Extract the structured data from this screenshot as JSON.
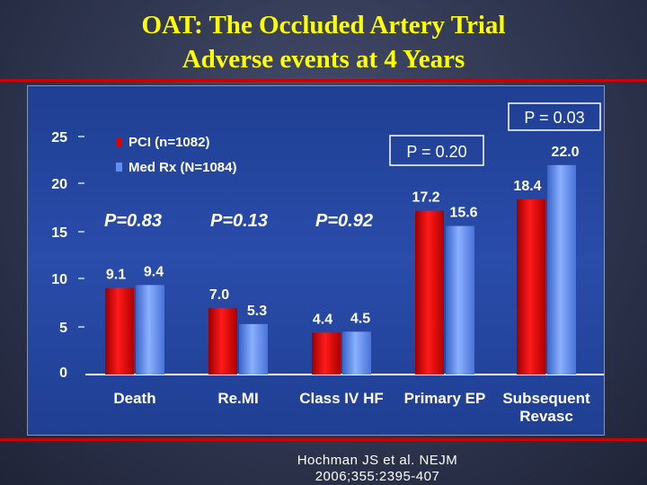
{
  "slide": {
    "title_line1": "OAT: The Occluded Artery Trial",
    "title_line2": "Adverse events at 4 Years",
    "citation_line1": "Hochman JS et al. NEJM",
    "citation_line2": "2006;355:2395-407",
    "colors": {
      "title": "#ffff00",
      "background": "#2b3150",
      "panel": "#2646a0",
      "accent_rule": "#cc0000"
    }
  },
  "chart_data": {
    "type": "bar",
    "categories": [
      "Death",
      "Re.MI",
      "Class IV HF",
      "Primary EP",
      "Subsequent\nRevasc"
    ],
    "series": [
      {
        "name": "PCI (n=1082)",
        "values": [
          9.1,
          7.0,
          4.4,
          17.2,
          18.4
        ],
        "value_labels": [
          "9.1",
          "7.0",
          "4.4",
          "17.2",
          "18.4"
        ],
        "color": "#e00000"
      },
      {
        "name": "Med Rx (N=1084)",
        "values": [
          9.4,
          5.3,
          4.5,
          15.6,
          22.0
        ],
        "value_labels": [
          "9.4",
          "5.3",
          "4.5",
          "15.6",
          "22.0"
        ],
        "color": "#5f8ff0"
      }
    ],
    "yticks": [
      "25",
      "20",
      "15",
      "10",
      "5",
      "0"
    ],
    "ylim": [
      0,
      25
    ],
    "grid": false,
    "legend": "top-left",
    "annotations": [
      {
        "text": "P=0.83",
        "category": "Death"
      },
      {
        "text": "P=0.13",
        "category": "Re.MI"
      },
      {
        "text": "P=0.92",
        "category": "Class IV HF"
      },
      {
        "text": "P = 0.20",
        "category": "Primary EP"
      },
      {
        "text": "P = 0.03",
        "category": "Subsequent\nRevasc"
      }
    ]
  }
}
